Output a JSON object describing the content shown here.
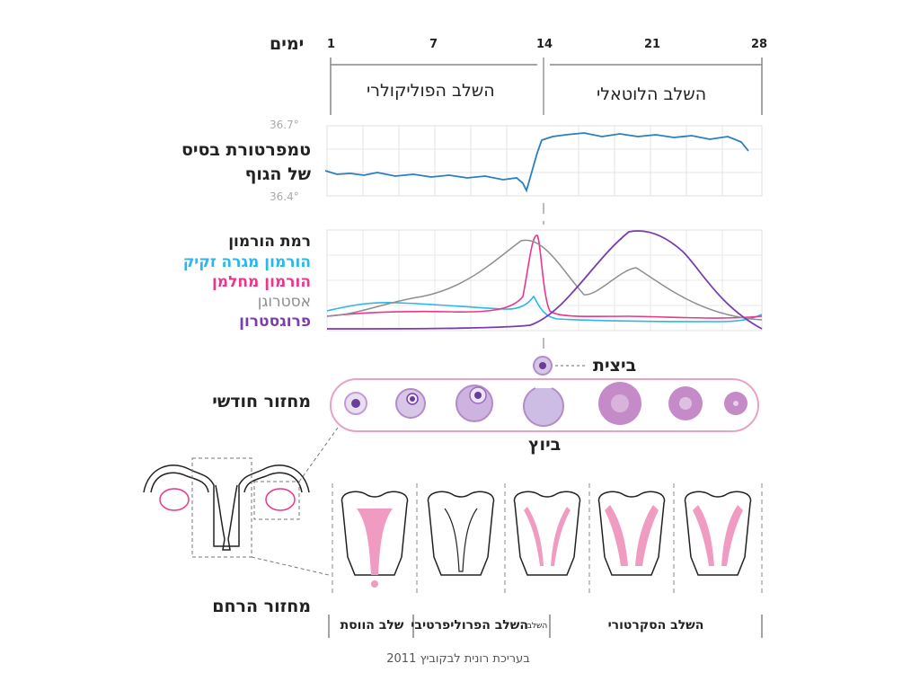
{
  "days": {
    "label": "ימים",
    "ticks": [
      "1",
      "7",
      "14",
      "21",
      "28"
    ]
  },
  "phases": {
    "follicular": "השלב הפוליקולרי",
    "luteal": "השלב הלוטאלי"
  },
  "temperature": {
    "title_line1": "טמפרטורת בסיס",
    "title_line2": "של הגוף",
    "high": "36.7°",
    "low": "36.4°"
  },
  "hormones": {
    "title": "רמת הורמון",
    "items": [
      {
        "name": "הורמון מגרה זקיק",
        "color": "#2cb7e8"
      },
      {
        "name": "הורמון מחלמן",
        "color": "#e8388a"
      },
      {
        "name": "אסטרוגן",
        "color": "#8e8e8e"
      },
      {
        "name": "פרוגסטרון",
        "color": "#7a3db0"
      }
    ]
  },
  "ovulation_label": "ביצית",
  "ovarian_cycle": {
    "title": "מחזור חודשי",
    "ovulation": "ביוץ"
  },
  "uterine_cycle": {
    "title": "מחזור הרחם",
    "menstrual": "שלב הווסת",
    "proliferative": "השלב הפרוליפרטיבי",
    "proliferative_small": "השלב",
    "secretory": "השלב הסקרטורי"
  },
  "credit": "בעריכת רונית לבקוביץ 2011"
}
